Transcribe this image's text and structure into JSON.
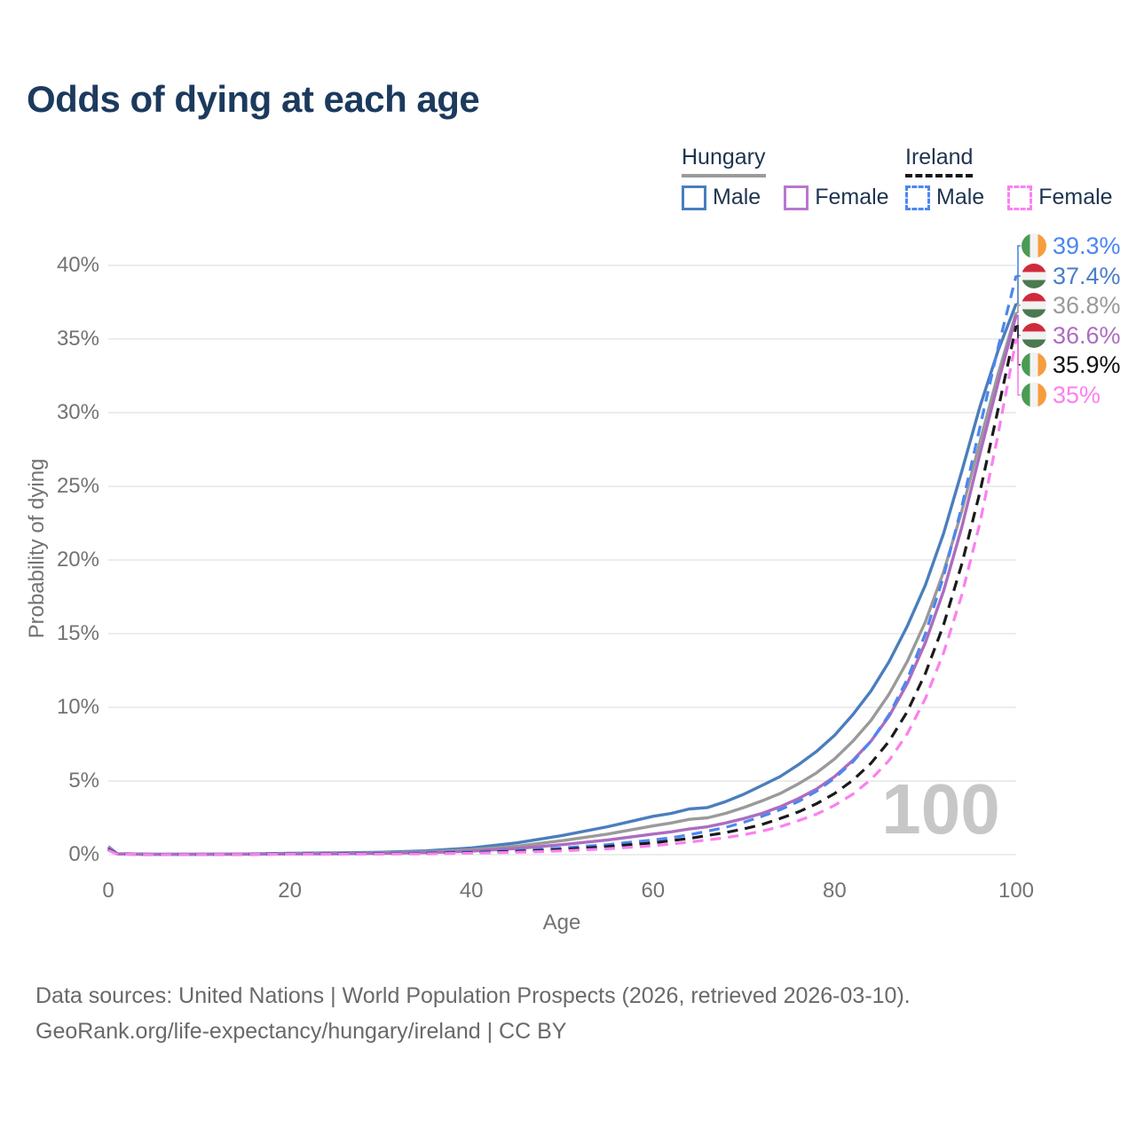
{
  "title": "Odds of dying at each age",
  "legend": {
    "groups": [
      {
        "name": "Hungary",
        "line_style": "solid",
        "items": [
          {
            "label": "Male",
            "color": "#4a7ebd",
            "dash": false
          },
          {
            "label": "Female",
            "color": "#b879cb",
            "dash": false
          }
        ]
      },
      {
        "name": "Ireland",
        "line_style": "dashed",
        "items": [
          {
            "label": "Male",
            "color": "#4c86f0",
            "dash": true
          },
          {
            "label": "Female",
            "color": "#fb80f0",
            "dash": true
          }
        ]
      }
    ]
  },
  "chart_data": {
    "type": "line",
    "title": "Odds of dying at each age",
    "xlabel": "Age",
    "ylabel": "Probability of dying",
    "xlim": [
      0,
      100
    ],
    "ylim": [
      0,
      41.5
    ],
    "x_ticks": [
      0,
      20,
      40,
      60,
      80,
      100
    ],
    "x_tick_labels": [
      "0",
      "20",
      "40",
      "60",
      "80",
      "100"
    ],
    "y_ticks": [
      0,
      5,
      10,
      15,
      20,
      25,
      30,
      35,
      40
    ],
    "y_tick_labels": [
      "0%",
      "5%",
      "10%",
      "15%",
      "20%",
      "25%",
      "30%",
      "35%",
      "40%"
    ],
    "grid": "horizontal-only",
    "legend_position": "top-right",
    "age_indicator": "100",
    "x": [
      0,
      1,
      5,
      10,
      15,
      20,
      25,
      30,
      35,
      40,
      45,
      50,
      55,
      60,
      62,
      64,
      66,
      68,
      70,
      72,
      74,
      76,
      78,
      80,
      82,
      84,
      86,
      88,
      90,
      92,
      94,
      96,
      98,
      100
    ],
    "series": [
      {
        "name": "Hungary Male",
        "country": "Hungary",
        "sex": "Male",
        "color": "#4a7ebd",
        "dash": false,
        "flag": "hungary",
        "end_value": 37.4,
        "end_label": "37.4%",
        "label_color": "#4a7ec9",
        "values": [
          0.55,
          0.06,
          0.03,
          0.03,
          0.05,
          0.09,
          0.12,
          0.16,
          0.26,
          0.45,
          0.8,
          1.3,
          1.9,
          2.6,
          2.8,
          3.1,
          3.2,
          3.6,
          4.1,
          4.7,
          5.3,
          6.1,
          7.0,
          8.1,
          9.5,
          11.1,
          13.1,
          15.5,
          18.3,
          21.8,
          26.0,
          30.4,
          34.2,
          37.4
        ]
      },
      {
        "name": "Hungary",
        "country": "Hungary",
        "sex": "Both",
        "color": "#9a9a9a",
        "dash": false,
        "flag": "hungary",
        "end_value": 36.8,
        "end_label": "36.8%",
        "label_color": "#9a9a9a",
        "values": [
          0.5,
          0.05,
          0.02,
          0.03,
          0.04,
          0.07,
          0.09,
          0.12,
          0.19,
          0.33,
          0.58,
          0.95,
          1.4,
          1.95,
          2.15,
          2.4,
          2.5,
          2.8,
          3.2,
          3.65,
          4.15,
          4.8,
          5.55,
          6.5,
          7.7,
          9.1,
          10.9,
          13.1,
          15.8,
          19.2,
          23.3,
          28.0,
          32.6,
          36.8
        ]
      },
      {
        "name": "Hungary Female",
        "country": "Hungary",
        "sex": "Female",
        "color": "#ad6cc0",
        "dash": false,
        "flag": "hungary",
        "end_value": 36.6,
        "end_label": "36.6%",
        "label_color": "#ad6cc0",
        "values": [
          0.45,
          0.05,
          0.02,
          0.02,
          0.03,
          0.05,
          0.06,
          0.09,
          0.14,
          0.24,
          0.42,
          0.68,
          1.0,
          1.4,
          1.55,
          1.75,
          1.9,
          2.15,
          2.45,
          2.8,
          3.25,
          3.8,
          4.45,
          5.3,
          6.4,
          7.7,
          9.4,
          11.6,
          14.4,
          17.9,
          22.2,
          27.2,
          32.0,
          36.6
        ]
      },
      {
        "name": "Ireland Male",
        "country": "Ireland",
        "sex": "Male",
        "color": "#4c86f0",
        "dash": true,
        "flag": "ireland",
        "end_value": 39.3,
        "end_label": "39.3%",
        "label_color": "#4c86f0",
        "values": [
          0.4,
          0.04,
          0.01,
          0.02,
          0.03,
          0.06,
          0.07,
          0.09,
          0.12,
          0.18,
          0.28,
          0.45,
          0.68,
          1.0,
          1.15,
          1.35,
          1.6,
          1.85,
          2.2,
          2.6,
          3.05,
          3.6,
          4.3,
          5.2,
          6.3,
          7.7,
          9.5,
          11.9,
          15.0,
          18.9,
          23.6,
          29.0,
          34.4,
          39.3
        ]
      },
      {
        "name": "Ireland",
        "country": "Ireland",
        "sex": "Both",
        "color": "#1a1a1a",
        "dash": true,
        "flag": "ireland",
        "end_value": 35.9,
        "end_label": "35.9%",
        "label_color": "#111111",
        "values": [
          0.35,
          0.04,
          0.01,
          0.01,
          0.02,
          0.04,
          0.05,
          0.06,
          0.09,
          0.14,
          0.22,
          0.35,
          0.55,
          0.8,
          0.95,
          1.1,
          1.3,
          1.5,
          1.75,
          2.05,
          2.45,
          2.9,
          3.45,
          4.15,
          5.05,
          6.2,
          7.7,
          9.7,
          12.3,
          15.6,
          19.7,
          24.6,
          30.2,
          35.9
        ]
      },
      {
        "name": "Ireland Female",
        "country": "Ireland",
        "sex": "Female",
        "color": "#fb80f0",
        "dash": true,
        "flag": "ireland",
        "end_value": 35.0,
        "end_label": "35%",
        "label_color": "#fb80f0",
        "values": [
          0.3,
          0.03,
          0.01,
          0.01,
          0.02,
          0.03,
          0.03,
          0.04,
          0.06,
          0.1,
          0.16,
          0.26,
          0.4,
          0.6,
          0.72,
          0.85,
          1.0,
          1.15,
          1.35,
          1.6,
          1.9,
          2.3,
          2.75,
          3.35,
          4.1,
          5.1,
          6.4,
          8.2,
          10.6,
          13.7,
          17.6,
          22.5,
          28.5,
          35.0
        ]
      }
    ]
  },
  "footer": {
    "line1": "Data sources: United Nations | World Population Prospects (2026, retrieved 2026-03-10).",
    "line2": "GeoRank.org/life-expectancy/hungary/ireland | CC BY"
  }
}
